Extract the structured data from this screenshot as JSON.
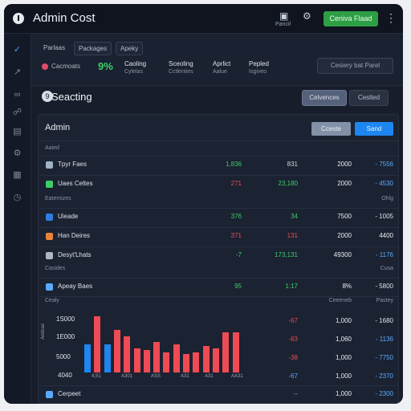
{
  "app": {
    "title": "Admin Cost",
    "primary_label": "Ceniva Flaad",
    "caption": "Pancil"
  },
  "header_tabs": [
    "Parlaas",
    "Packages",
    "Apeky"
  ],
  "metric": {
    "label": "Cacmoats",
    "value": "9%"
  },
  "summary": [
    {
      "head": "Caoling",
      "sub": "Cylelas"
    },
    {
      "head": "Sceoling",
      "sub": "Cctlenties"
    },
    {
      "head": "Aprlict",
      "sub": "Aalue"
    },
    {
      "head": "Pepled",
      "sub": "Isgiveo"
    }
  ],
  "strip_button": "Cesiery bat Parel",
  "section": {
    "icon": "9",
    "title": "Seacting",
    "btn1": "Celvences",
    "btn2": "Ceslted"
  },
  "panel": {
    "title": "Admin",
    "btn_secondary": "Cceste",
    "btn_primary": "Sand",
    "groups": [
      {
        "label": "Aaied",
        "right": ""
      },
      {
        "label": "Eatemizes",
        "right": "Ohlg"
      },
      {
        "label": "Casides",
        "right": "Cusa"
      }
    ],
    "rows": [
      {
        "name": "Tpyr Faes",
        "icon_color": "#9fb3c8",
        "c1": "1,836",
        "c1_color": "#3ccf68",
        "c2": "831",
        "c2_color": "#cfd5df",
        "c3": "2000",
        "c3_color": "#e9edf3",
        "c4": "- 7556",
        "c4_color": "#5aa9ff"
      },
      {
        "name": "Uaes Celtes",
        "icon_color": "#3ccf68",
        "c1": "271",
        "c1_color": "#ef4b55",
        "c2": "23,180",
        "c2_color": "#3ccf68",
        "c3": "2000",
        "c3_color": "#e9edf3",
        "c4": "- 4530",
        "c4_color": "#5aa9ff"
      },
      {
        "name": "Uieade",
        "icon_color": "#2f7de1",
        "c1": "376",
        "c1_color": "#3ccf68",
        "c2": "34",
        "c2_color": "#3ccf68",
        "c3": "7500",
        "c3_color": "#e9edf3",
        "c4": "- 1005",
        "c4_color": "#dde2ea"
      },
      {
        "name": "Han Deires",
        "icon_color": "#e8833a",
        "c1": "371",
        "c1_color": "#ef4b55",
        "c2": "131",
        "c2_color": "#ef4b55",
        "c3": "2000",
        "c3_color": "#e9edf3",
        "c4": "4400",
        "c4_color": "#e9edf3"
      },
      {
        "name": "Desyt'Lhats",
        "icon_color": "#aeb6c4",
        "c1": "-7",
        "c1_color": "#3ccf68",
        "c2": "173,131",
        "c2_color": "#3ccf68",
        "c3": "49300",
        "c3_color": "#e9edf3",
        "c4": "- 1176",
        "c4_color": "#5aa9ff"
      },
      {
        "name": "Apeay Baes",
        "icon_color": "#5aa9ff",
        "c1": "95",
        "c1_color": "#3ccf68",
        "c2": "1:17",
        "c2_color": "#3ccf68",
        "c3": "8%",
        "c3_color": "#e9edf3",
        "c4": "- 5800",
        "c4_color": "#dde2ea"
      }
    ],
    "chart_header": {
      "left": "Cealy",
      "mid": "Ceeeneb",
      "right": "Pastey"
    },
    "chart_rows": [
      {
        "c1": "-67",
        "c1_color": "#ef4b55",
        "c3": "1,000",
        "c4": "- 1680",
        "c4_color": "#dde2ea"
      },
      {
        "c1": "-63",
        "c1_color": "#ef4b55",
        "c3": "1,060",
        "c4": "- 1136",
        "c4_color": "#5aa9ff"
      },
      {
        "c1": "-38",
        "c1_color": "#ef4b55",
        "c3": "1,000",
        "c4": "- 7750",
        "c4_color": "#5aa9ff"
      },
      {
        "c1": "-67",
        "c1_color": "#5aa9ff",
        "c3": "1,000",
        "c4": "- 2370",
        "c4_color": "#5aa9ff"
      }
    ],
    "footer": {
      "name": "Cerpeet",
      "c1": "--",
      "c3": "1,000",
      "c4": "- 2300"
    }
  },
  "chart_data": {
    "type": "bar",
    "yaxis_label": "Aodcas",
    "yticks": [
      "1S000",
      "1E000",
      "5000",
      "4040"
    ],
    "xticks": [
      "4,51",
      "A301",
      "ASS",
      "A31",
      "A31",
      "AA31"
    ],
    "ylim": [
      0,
      16000
    ],
    "values": [
      7000,
      14000,
      7000,
      10500,
      9000,
      6000,
      5500,
      7500,
      5000,
      7000,
      4500,
      5000,
      6500,
      6000,
      10000,
      10000
    ],
    "colors": [
      "#1e86f0",
      "#ef4b55",
      "#1e86f0",
      "#ef4b55",
      "#ef4b55",
      "#ef4b55",
      "#ef4b55",
      "#ef4b55",
      "#ef4b55",
      "#ef4b55",
      "#ef4b55",
      "#ef4b55",
      "#ef4b55",
      "#ef4b55",
      "#ef4b55",
      "#ef4b55"
    ]
  }
}
